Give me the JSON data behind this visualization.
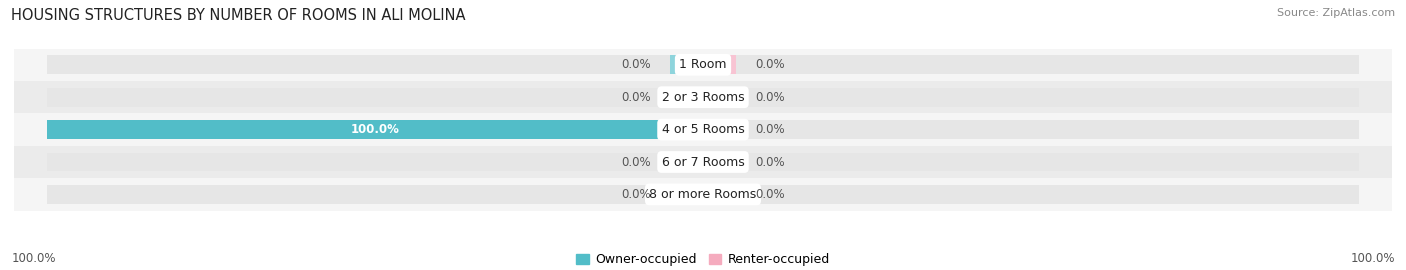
{
  "title": "HOUSING STRUCTURES BY NUMBER OF ROOMS IN ALI MOLINA",
  "source": "Source: ZipAtlas.com",
  "categories": [
    "1 Room",
    "2 or 3 Rooms",
    "4 or 5 Rooms",
    "6 or 7 Rooms",
    "8 or more Rooms"
  ],
  "owner_values": [
    0.0,
    0.0,
    100.0,
    0.0,
    0.0
  ],
  "renter_values": [
    0.0,
    0.0,
    0.0,
    0.0,
    0.0
  ],
  "owner_color": "#52bdc8",
  "renter_color": "#f5abbe",
  "owner_stub_color": "#8ed4dc",
  "renter_stub_color": "#f8c4d3",
  "bar_bg_color": "#e6e6e6",
  "row_bg_even": "#f5f5f5",
  "row_bg_odd": "#ebebeb",
  "x_left_label": "100.0%",
  "x_right_label": "100.0%",
  "title_fontsize": 10.5,
  "source_fontsize": 8,
  "bar_label_fontsize": 8.5,
  "cat_label_fontsize": 9,
  "legend_fontsize": 9,
  "stub_size": 5.0,
  "bar_height": 0.58,
  "figsize": [
    14.06,
    2.7
  ],
  "dpi": 100
}
